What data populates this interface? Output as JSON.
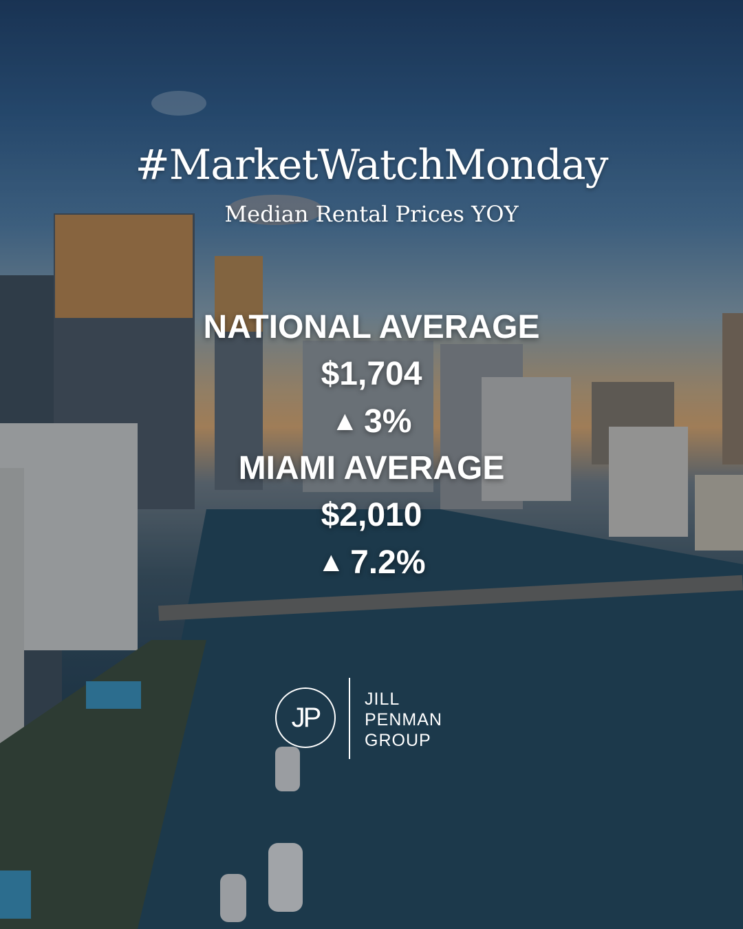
{
  "title": "#MarketWatchMonday",
  "subtitle": "Median Rental Prices YOY",
  "national": {
    "label": "NATIONAL AVERAGE",
    "price": "$1,704",
    "change": "3%"
  },
  "miami": {
    "label": "MIAMI AVERAGE",
    "price": "$2,010",
    "change": "7.2%"
  },
  "logo": {
    "monogram": "JP",
    "line1": "JILL",
    "line2": "PENMAN",
    "line3": "GROUP"
  },
  "icons": {
    "increase": "up-triangle-icon"
  },
  "colors": {
    "text": "#ffffff",
    "sky_top": "#1f3f66",
    "sunset": "#d9a56b",
    "water": "#1f3b4d"
  }
}
